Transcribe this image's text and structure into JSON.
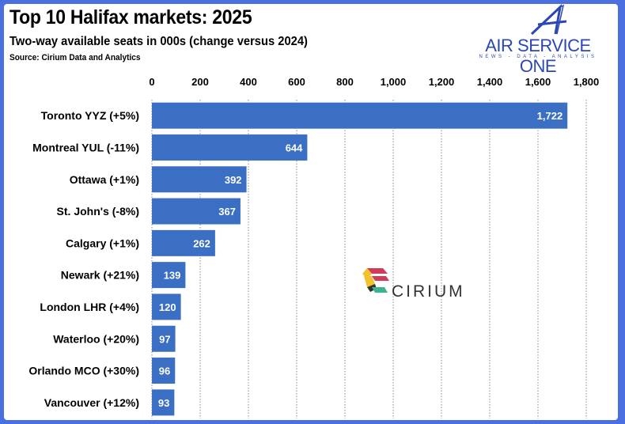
{
  "chart_data": {
    "type": "bar",
    "orientation": "horizontal",
    "title": "Top 10 Halifax markets: 2025",
    "subtitle": "Two-way available seats in 000s (change versus 2024)",
    "source": "Source: Cirium Data and Analytics",
    "categories": [
      "Toronto YYZ (+5%)",
      "Montreal YUL (-11%)",
      "Ottawa (+1%)",
      "St. John's (-8%)",
      "Calgary (+1%)",
      "Newark (+21%)",
      "London LHR (+4%)",
      "Waterloo (+20%)",
      "Orlando MCO (+30%)",
      "Vancouver (+12%)"
    ],
    "values": [
      1722,
      644,
      392,
      367,
      262,
      139,
      120,
      97,
      96,
      93
    ],
    "value_labels": [
      "1,722",
      "644",
      "392",
      "367",
      "262",
      "139",
      "120",
      "97",
      "96",
      "93"
    ],
    "xlim": [
      0,
      1800
    ],
    "xticks": [
      0,
      200,
      400,
      600,
      800,
      1000,
      1200,
      1400,
      1600,
      1800
    ],
    "xtick_labels": [
      "0",
      "200",
      "400",
      "600",
      "800",
      "1,000",
      "1,200",
      "1,400",
      "1,600",
      "1,800"
    ],
    "axis_position": "top",
    "grid": "vertical dotted",
    "bar_color": "#3a6fc4"
  },
  "branding": {
    "publisher": "AIR SERVICE ONE",
    "tagline": "NEWS - DATA - ANALYSIS",
    "watermark": "CIRIUM"
  },
  "colors": {
    "border": "#4a6fe0",
    "logo": "#2b46b5"
  }
}
